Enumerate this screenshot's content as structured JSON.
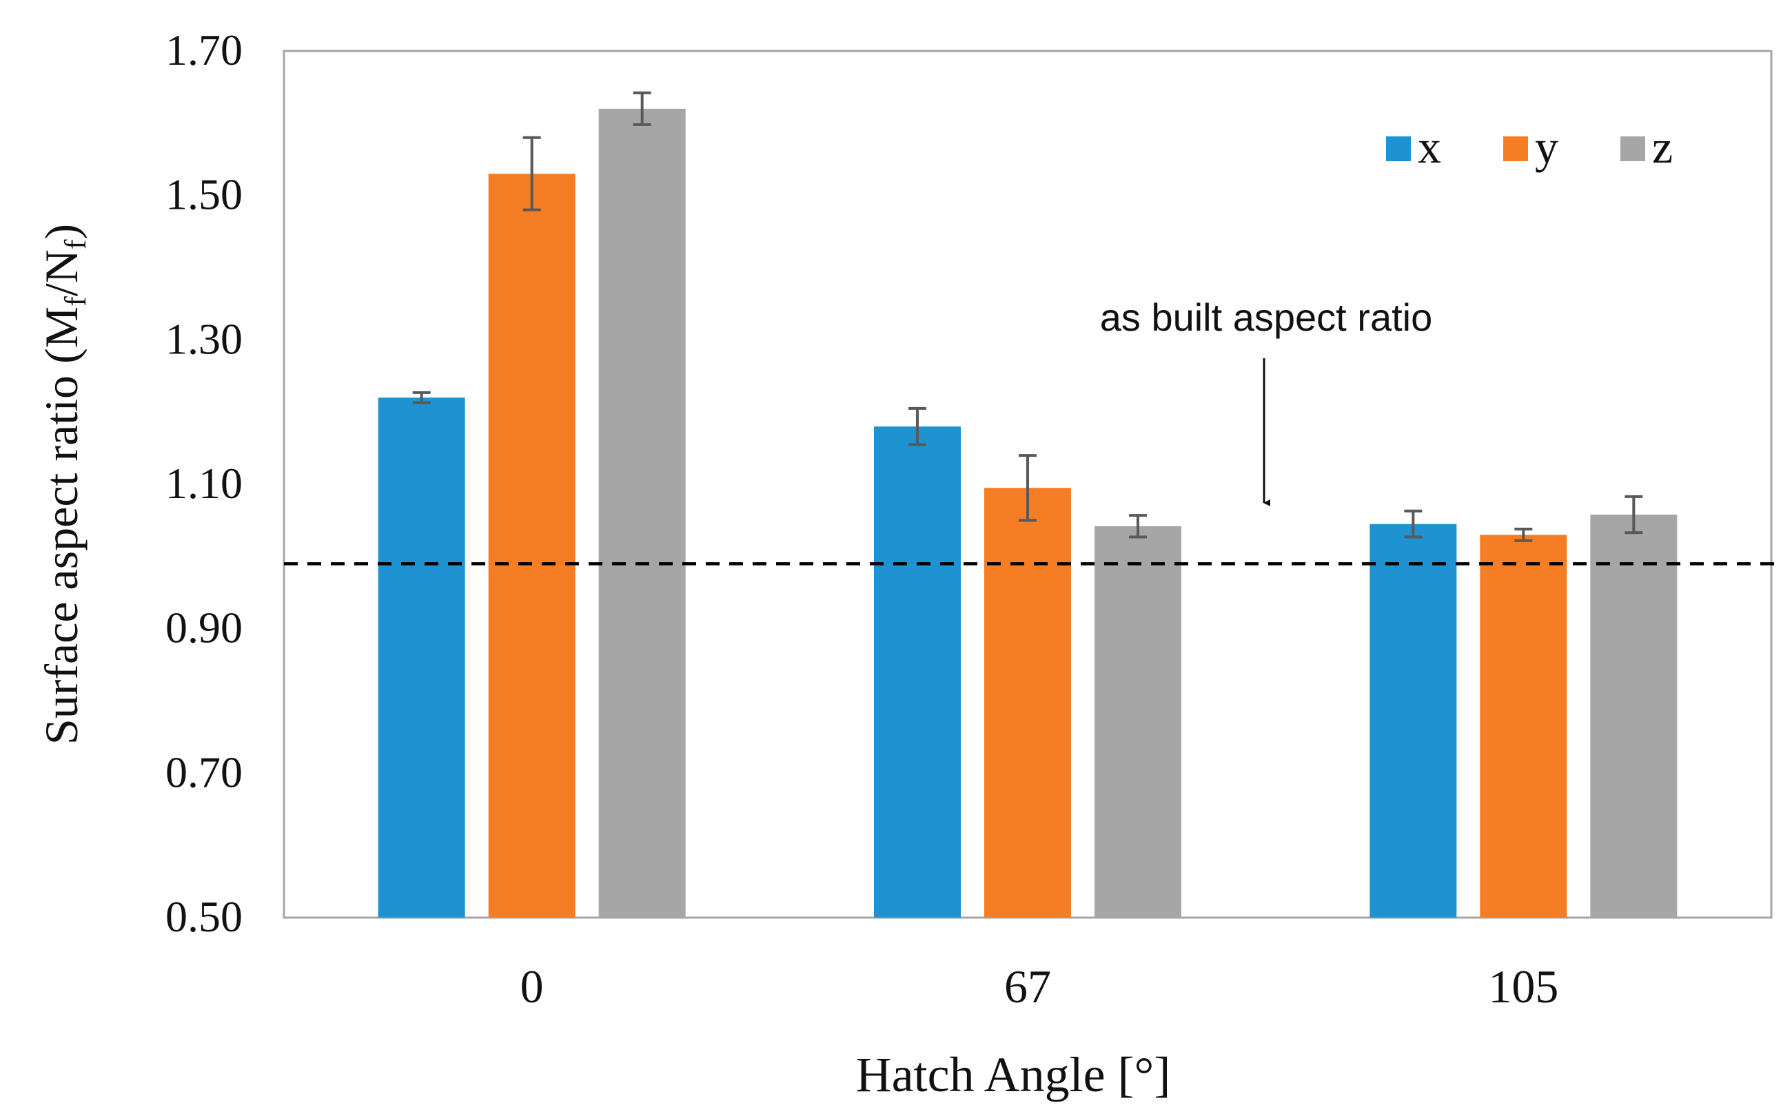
{
  "chart_data": {
    "type": "bar",
    "categories": [
      "0",
      "67",
      "105"
    ],
    "series": [
      {
        "name": "x",
        "color": "#1F93D2",
        "values": [
          1.22,
          1.18,
          1.045
        ],
        "errors": [
          0.007,
          0.025,
          0.018
        ]
      },
      {
        "name": "y",
        "color": "#F57E25",
        "values": [
          1.53,
          1.095,
          1.03
        ],
        "errors": [
          0.05,
          0.045,
          0.008
        ]
      },
      {
        "name": "z",
        "color": "#A6A6A6",
        "values": [
          1.62,
          1.042,
          1.058
        ],
        "errors": [
          0.022,
          0.015,
          0.025
        ]
      }
    ],
    "xlabel": "Hatch Angle [°]",
    "ylabel": {
      "main": "Surface aspect ratio (M",
      "sub1": "f",
      "slash": "/N",
      "sub2": "f",
      "close": ")"
    },
    "ylim": [
      0.5,
      1.7
    ],
    "yticks": [
      0.5,
      0.7,
      0.9,
      1.1,
      1.3,
      1.5,
      1.7
    ],
    "ytick_labels": [
      "0.50",
      "0.70",
      "0.90",
      "1.10",
      "1.30",
      "1.50",
      "1.70"
    ],
    "reference_line": {
      "value": 0.99,
      "style": "dashed"
    },
    "annotation": {
      "text": "as built aspect ratio"
    },
    "legend_position": "top-right",
    "grid": false
  }
}
